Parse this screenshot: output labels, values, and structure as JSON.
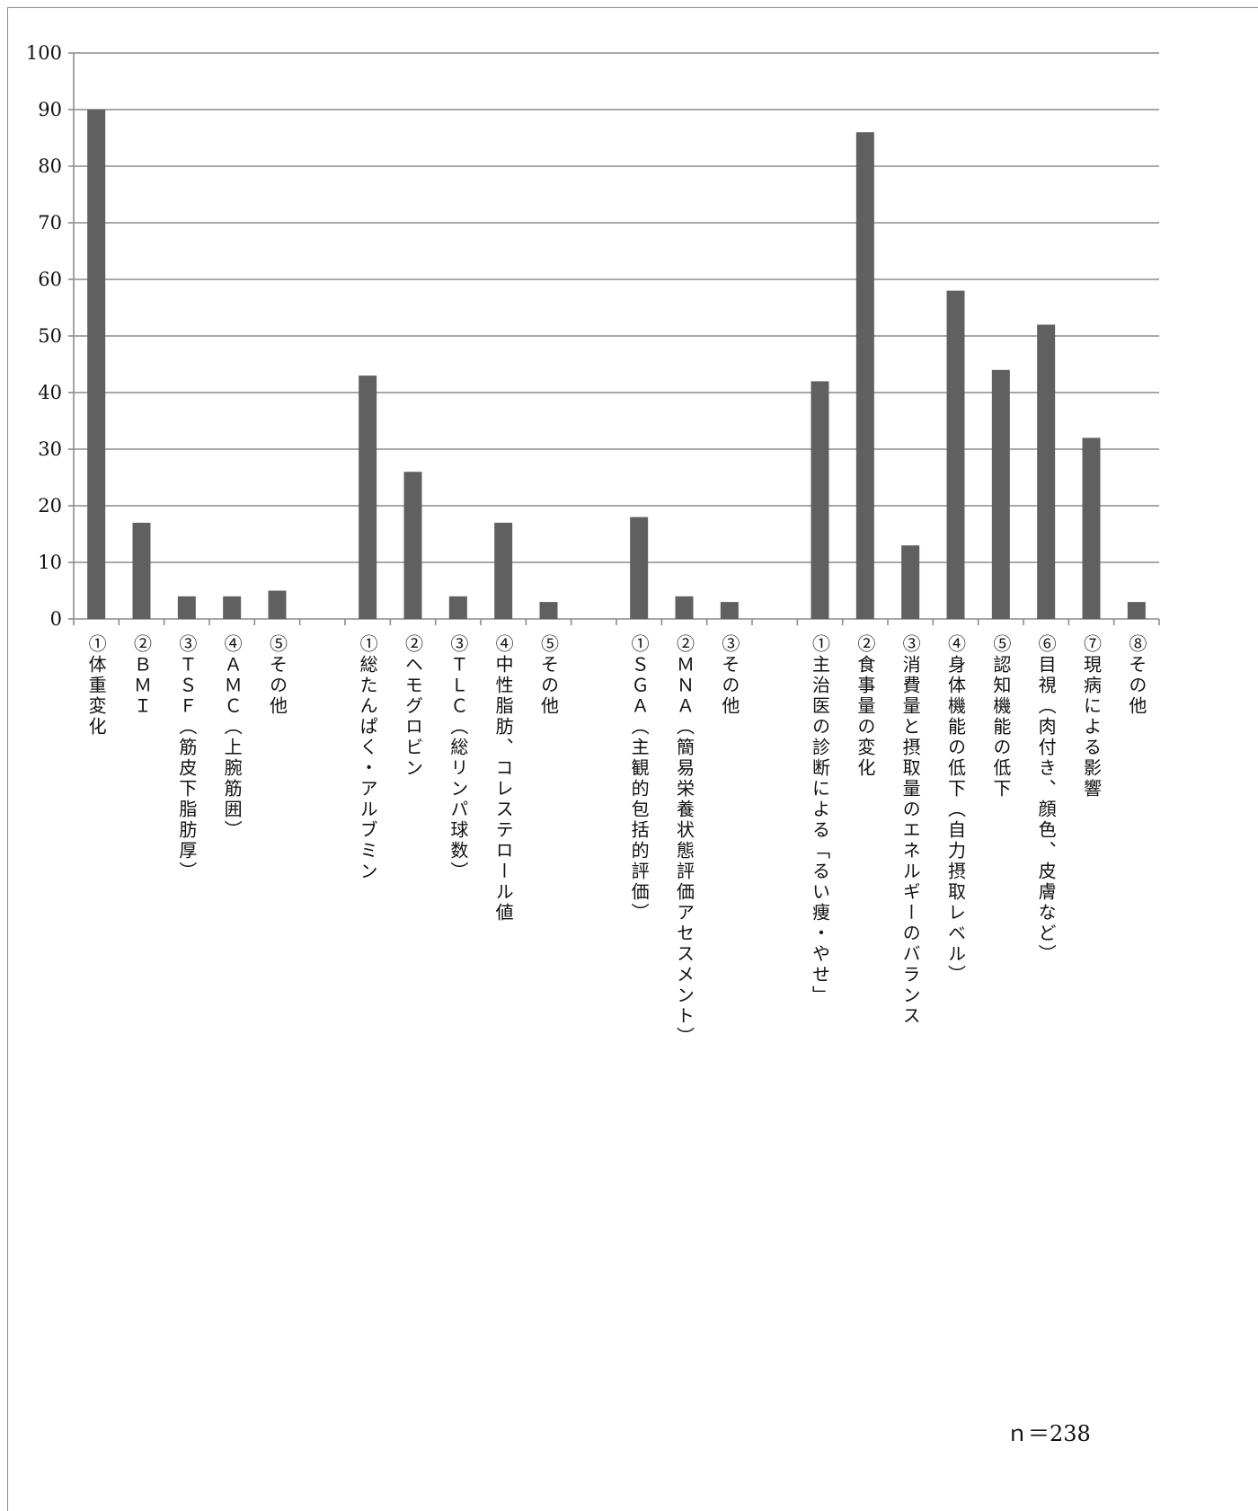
{
  "chart_data": {
    "type": "bar",
    "ylim": [
      0,
      100
    ],
    "yticks": [
      0,
      10,
      20,
      30,
      40,
      50,
      60,
      70,
      80,
      90,
      100
    ],
    "grid": true,
    "bar_color": "#606060",
    "grid_color": "#8c8c8c",
    "categories": [
      "①体重変化",
      "②ＢＭＩ",
      "③ＴＳＦ（筋皮下脂肪厚）",
      "④ＡＭＣ（上腕筋囲）",
      "⑤その他",
      "",
      "①総たんぱく・アルブミン",
      "②ヘモグロビン",
      "③ＴＬＣ（総リンパ球数）",
      "④中性脂肪、コレステロール値",
      "⑤その他",
      "",
      "①ＳＧＡ（主観的包括的評価）",
      "②ＭＮＡ（簡易栄養状態評価アセスメント）",
      "③その他",
      "",
      "①主治医の診断による「るい痩・やせ」",
      "②食事量の変化",
      "③消費量と摂取量のエネルギーのバランス",
      "④身体機能の低下（自力摂取レベル）",
      "⑤認知機能の低下",
      "⑥目視（肉付き、顔色、皮膚など）",
      "⑦現病による影響",
      "⑧その他"
    ],
    "values": [
      90,
      17,
      4,
      4,
      5,
      null,
      43,
      26,
      4,
      17,
      3,
      null,
      18,
      4,
      3,
      null,
      42,
      86,
      13,
      58,
      44,
      52,
      32,
      3
    ],
    "title": "",
    "xlabel": "",
    "ylabel": ""
  },
  "note": "ｎ＝238"
}
